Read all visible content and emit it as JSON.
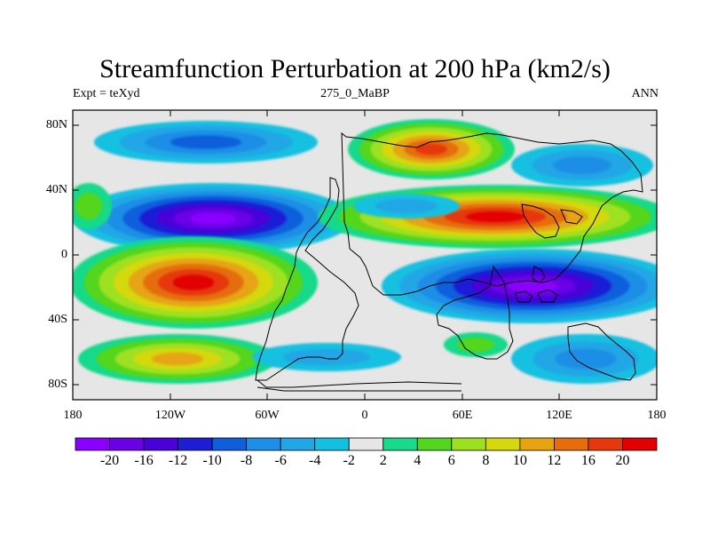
{
  "title": "Streamfunction Perturbation at 200 hPa (km2/s)",
  "left_string": "Expt = teXyd",
  "center_string": "275_0_MaBP",
  "right_string": "ANN",
  "lat_ticks": [
    "80N",
    "40N",
    "0",
    "40S",
    "80S"
  ],
  "lon_ticks": [
    "180",
    "120W",
    "60W",
    "0",
    "60E",
    "120E",
    "180"
  ],
  "colorbar": {
    "labels": [
      "-20",
      "-16",
      "-12",
      "-10",
      "-8",
      "-6",
      "-4",
      "-2",
      "2",
      "4",
      "6",
      "8",
      "10",
      "12",
      "16",
      "20"
    ],
    "colors": [
      "#8a00ff",
      "#6b00e6",
      "#4a00d8",
      "#1e1ed6",
      "#0f5fdc",
      "#1e8ee6",
      "#22a6e6",
      "#13c0e0",
      "#e6e6e6",
      "#19d98a",
      "#52d61e",
      "#9ee020",
      "#d4d80c",
      "#e6a412",
      "#e66d0b",
      "#e6380c",
      "#e20000"
    ]
  }
}
